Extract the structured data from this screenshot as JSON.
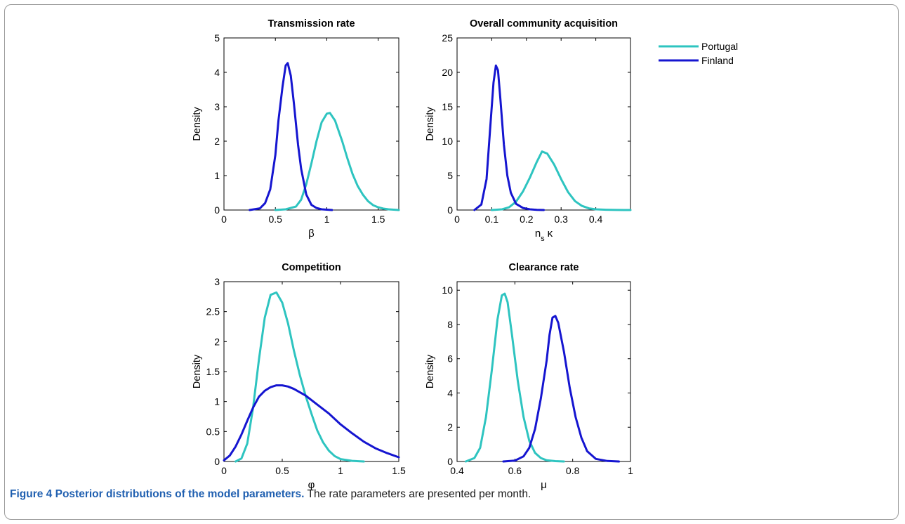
{
  "figure": {
    "caption_label": "Figure 4",
    "caption_title": "Posterior distributions of the model parameters.",
    "caption_text": "The rate parameters are presented per month."
  },
  "legend": {
    "placement": "top-right",
    "entries": [
      {
        "name": "Portugal",
        "color": "#2ec4c0"
      },
      {
        "name": "Finland",
        "color": "#1515d0"
      }
    ]
  },
  "colors": {
    "portugal": "#2ec4c0",
    "finland": "#1515d0"
  },
  "chart_data": [
    {
      "type": "line",
      "title": "Transmission rate",
      "xlabel": "β",
      "xlabel_sub": "",
      "ylabel": "Density",
      "xlim": [
        0,
        1.7
      ],
      "ylim": [
        0,
        5
      ],
      "xticks": [
        0,
        0.5,
        1,
        1.5
      ],
      "xtick_labels": [
        "0",
        "0.5",
        "1",
        "1.5"
      ],
      "yticks": [
        0,
        1,
        2,
        3,
        4,
        5
      ],
      "ytick_labels": [
        "0",
        "1",
        "2",
        "3",
        "4",
        "5"
      ],
      "grid": false,
      "series": [
        {
          "name": "Portugal",
          "color": "#2ec4c0",
          "x": [
            0.5,
            0.6,
            0.7,
            0.75,
            0.8,
            0.85,
            0.9,
            0.95,
            1.0,
            1.03,
            1.08,
            1.15,
            1.2,
            1.25,
            1.3,
            1.35,
            1.4,
            1.45,
            1.5,
            1.55,
            1.6,
            1.65,
            1.7
          ],
          "y": [
            0.0,
            0.02,
            0.1,
            0.3,
            0.75,
            1.35,
            2.0,
            2.55,
            2.8,
            2.82,
            2.6,
            2.0,
            1.5,
            1.05,
            0.7,
            0.45,
            0.26,
            0.14,
            0.08,
            0.04,
            0.02,
            0.01,
            0.0
          ]
        },
        {
          "name": "Finland",
          "color": "#1515d0",
          "x": [
            0.25,
            0.35,
            0.4,
            0.45,
            0.5,
            0.53,
            0.57,
            0.6,
            0.62,
            0.65,
            0.68,
            0.72,
            0.75,
            0.8,
            0.85,
            0.9,
            0.95,
            1.0,
            1.05
          ],
          "y": [
            0.0,
            0.05,
            0.2,
            0.6,
            1.6,
            2.6,
            3.6,
            4.2,
            4.27,
            3.9,
            3.1,
            1.9,
            1.2,
            0.45,
            0.15,
            0.06,
            0.02,
            0.01,
            0.0
          ]
        }
      ]
    },
    {
      "type": "line",
      "title": "Overall community acquisition",
      "xlabel": "n",
      "xlabel_sub": "s",
      "xlabel_tail": "κ",
      "ylabel": "Density",
      "xlim": [
        0,
        0.5
      ],
      "ylim": [
        0,
        25
      ],
      "xticks": [
        0,
        0.1,
        0.2,
        0.3,
        0.4
      ],
      "xtick_labels": [
        "0",
        "0.1",
        "0.2",
        "0.3",
        "0.4"
      ],
      "yticks": [
        0,
        5,
        10,
        15,
        20,
        25
      ],
      "ytick_labels": [
        "0",
        "5",
        "10",
        "15",
        "20",
        "25"
      ],
      "grid": false,
      "series": [
        {
          "name": "Portugal",
          "color": "#2ec4c0",
          "x": [
            0.1,
            0.13,
            0.15,
            0.17,
            0.19,
            0.21,
            0.23,
            0.245,
            0.26,
            0.28,
            0.3,
            0.32,
            0.34,
            0.36,
            0.38,
            0.4,
            0.43,
            0.46,
            0.5
          ],
          "y": [
            0.0,
            0.1,
            0.4,
            1.2,
            2.7,
            4.7,
            7.0,
            8.5,
            8.2,
            6.6,
            4.5,
            2.6,
            1.3,
            0.6,
            0.25,
            0.1,
            0.04,
            0.01,
            0.0
          ]
        },
        {
          "name": "Finland",
          "color": "#1515d0",
          "x": [
            0.05,
            0.07,
            0.085,
            0.095,
            0.105,
            0.112,
            0.118,
            0.125,
            0.135,
            0.145,
            0.155,
            0.17,
            0.19,
            0.21,
            0.23,
            0.25
          ],
          "y": [
            0.0,
            0.8,
            4.5,
            11.5,
            18.5,
            21.0,
            20.3,
            16.0,
            9.5,
            5.0,
            2.5,
            0.9,
            0.3,
            0.1,
            0.03,
            0.0
          ]
        }
      ]
    },
    {
      "type": "line",
      "title": "Competition",
      "xlabel": "φ",
      "xlabel_sub": "",
      "ylabel": "Density",
      "xlim": [
        0,
        1.5
      ],
      "ylim": [
        0,
        3
      ],
      "xticks": [
        0,
        0.5,
        1,
        1.5
      ],
      "xtick_labels": [
        "0",
        "0.5",
        "1",
        "1.5"
      ],
      "yticks": [
        0,
        0.5,
        1,
        1.5,
        2,
        2.5,
        3
      ],
      "ytick_labels": [
        "0",
        "0.5",
        "1",
        "1.5",
        "2",
        "2.5",
        "3"
      ],
      "grid": false,
      "series": [
        {
          "name": "Portugal",
          "color": "#2ec4c0",
          "x": [
            0.1,
            0.15,
            0.2,
            0.25,
            0.3,
            0.35,
            0.4,
            0.45,
            0.5,
            0.55,
            0.6,
            0.65,
            0.7,
            0.75,
            0.8,
            0.85,
            0.9,
            0.95,
            1.0,
            1.1,
            1.2
          ],
          "y": [
            0.0,
            0.05,
            0.3,
            0.9,
            1.7,
            2.4,
            2.78,
            2.82,
            2.65,
            2.3,
            1.85,
            1.45,
            1.1,
            0.8,
            0.52,
            0.32,
            0.18,
            0.09,
            0.04,
            0.01,
            0.0
          ]
        },
        {
          "name": "Finland",
          "color": "#1515d0",
          "x": [
            0.0,
            0.05,
            0.1,
            0.15,
            0.2,
            0.25,
            0.3,
            0.35,
            0.4,
            0.45,
            0.5,
            0.55,
            0.6,
            0.7,
            0.8,
            0.9,
            1.0,
            1.1,
            1.2,
            1.3,
            1.4,
            1.5
          ],
          "y": [
            0.02,
            0.1,
            0.25,
            0.45,
            0.68,
            0.9,
            1.08,
            1.18,
            1.24,
            1.27,
            1.27,
            1.25,
            1.21,
            1.1,
            0.95,
            0.8,
            0.62,
            0.47,
            0.33,
            0.22,
            0.14,
            0.07
          ]
        }
      ]
    },
    {
      "type": "line",
      "title": "Clearance rate",
      "xlabel": "μ",
      "xlabel_sub": "",
      "ylabel": "Density",
      "xlim": [
        0.4,
        1
      ],
      "ylim": [
        0,
        10.5
      ],
      "xticks": [
        0.4,
        0.6,
        0.8,
        1
      ],
      "xtick_labels": [
        "0.4",
        "0.6",
        "0.8",
        "1"
      ],
      "yticks": [
        0,
        2,
        4,
        6,
        8,
        10
      ],
      "ytick_labels": [
        "0",
        "2",
        "4",
        "6",
        "8",
        "10"
      ],
      "grid": false,
      "series": [
        {
          "name": "Portugal",
          "color": "#2ec4c0",
          "x": [
            0.43,
            0.46,
            0.48,
            0.5,
            0.52,
            0.54,
            0.555,
            0.565,
            0.575,
            0.59,
            0.61,
            0.63,
            0.65,
            0.67,
            0.69,
            0.71,
            0.74,
            0.77
          ],
          "y": [
            0.0,
            0.2,
            0.8,
            2.6,
            5.3,
            8.3,
            9.7,
            9.8,
            9.3,
            7.4,
            4.7,
            2.6,
            1.2,
            0.5,
            0.2,
            0.07,
            0.02,
            0.0
          ]
        },
        {
          "name": "Finland",
          "color": "#1515d0",
          "x": [
            0.56,
            0.6,
            0.63,
            0.65,
            0.67,
            0.69,
            0.71,
            0.72,
            0.73,
            0.74,
            0.75,
            0.77,
            0.79,
            0.81,
            0.83,
            0.85,
            0.88,
            0.92,
            0.96
          ],
          "y": [
            0.0,
            0.05,
            0.3,
            0.8,
            1.9,
            3.7,
            5.9,
            7.4,
            8.4,
            8.5,
            8.1,
            6.4,
            4.3,
            2.6,
            1.4,
            0.6,
            0.15,
            0.03,
            0.0
          ]
        }
      ]
    }
  ]
}
